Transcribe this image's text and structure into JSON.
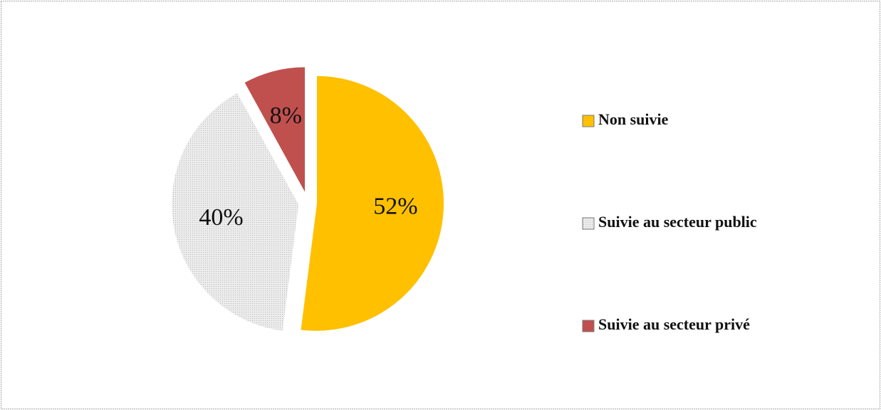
{
  "chart_data": {
    "type": "pie",
    "categories": [
      "Non suivie",
      "Suivie au secteur public",
      "Suivie au secteur privé"
    ],
    "values": [
      52,
      40,
      8
    ],
    "value_labels": [
      "52%",
      "40%",
      "8%"
    ],
    "colors": [
      "#FFC000",
      "#E4E4E4",
      "#C0504D"
    ],
    "legend": "right"
  }
}
